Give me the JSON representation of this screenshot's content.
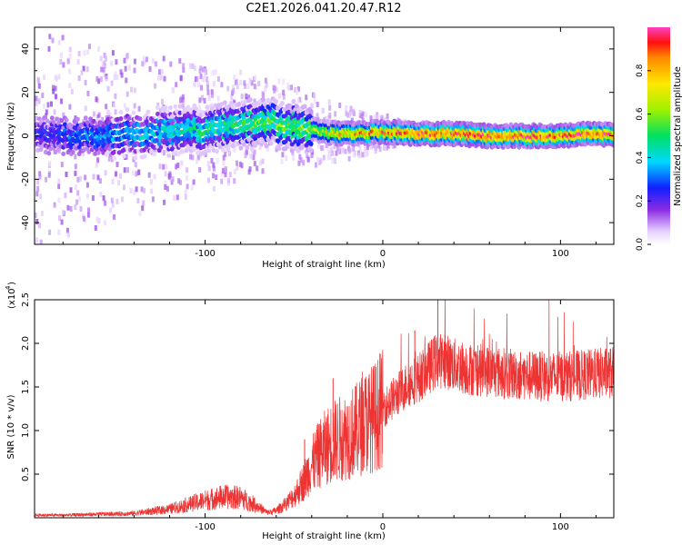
{
  "chart_data": [
    {
      "type": "heatmap",
      "title": "C2E1.2026.041.20.47.R12",
      "xlabel": "Height of straight line (km)",
      "ylabel": "Frequency (Hz)",
      "xlim": [
        -196,
        130
      ],
      "ylim": [
        -50,
        50
      ],
      "xticks": [
        -100,
        0,
        100
      ],
      "xtick_labels": [
        "-100",
        "0",
        "100"
      ],
      "yticks": [
        -40,
        -20,
        0,
        20,
        40
      ],
      "ytick_labels": [
        "-40",
        "-20",
        "0",
        "20",
        "40"
      ],
      "colorbar": {
        "label": "Normalized spectral amplitude",
        "range": [
          0,
          1
        ],
        "ticks": [
          0.0,
          0.2,
          0.4,
          0.6,
          0.8
        ],
        "tick_labels": [
          "0.0",
          "0.2",
          "0.4",
          "0.6",
          "0.8"
        ]
      },
      "ridge": {
        "x": [
          -196,
          -180,
          -160,
          -140,
          -120,
          -100,
          -80,
          -65,
          -55,
          -45,
          -35,
          -25,
          -10,
          0,
          20,
          40,
          60,
          80,
          100,
          120,
          130
        ],
        "freq": [
          0,
          0,
          0,
          1,
          2,
          3,
          5,
          6,
          5,
          4,
          2,
          1,
          1,
          2,
          1,
          1,
          0,
          0,
          0,
          1,
          0
        ],
        "peak": [
          0.25,
          0.3,
          0.35,
          0.4,
          0.45,
          0.5,
          0.55,
          0.6,
          0.6,
          0.62,
          0.7,
          0.8,
          0.85,
          0.9,
          0.95,
          0.97,
          0.98,
          0.98,
          0.98,
          0.97,
          0.95
        ]
      }
    },
    {
      "type": "line",
      "xlabel": "Height of straight line (km)",
      "ylabel": "SNR (10 * v/v)",
      "multiplier_label": "(x10",
      "multiplier_exp": "4",
      "multiplier_close": ")",
      "xlim": [
        -196,
        130
      ],
      "ylim": [
        0,
        25000
      ],
      "xticks": [
        -100,
        0,
        100
      ],
      "xtick_labels": [
        "-100",
        "0",
        "100"
      ],
      "yticks": [
        5000,
        10000,
        15000,
        20000,
        25000
      ],
      "ytick_labels": [
        "0.5",
        "1.0",
        "1.5",
        "2.0",
        "2.5"
      ],
      "color": "#ee3333",
      "series": [
        {
          "name": "SNR",
          "x": [
            -196,
            -180,
            -160,
            -140,
            -120,
            -110,
            -100,
            -90,
            -80,
            -72,
            -65,
            -60,
            -55,
            -50,
            -45,
            -40,
            -35,
            -30,
            -25,
            -20,
            -15,
            -10,
            -5,
            0,
            5,
            10,
            15,
            20,
            25,
            30,
            35,
            40,
            50,
            60,
            70,
            80,
            90,
            100,
            110,
            120,
            130
          ],
          "values": [
            300,
            300,
            400,
            500,
            1000,
            1500,
            2000,
            2400,
            2300,
            1500,
            600,
            800,
            1500,
            2500,
            4000,
            6000,
            7500,
            8500,
            9000,
            9500,
            10000,
            11000,
            11500,
            12500,
            13500,
            14500,
            15500,
            16000,
            17000,
            18000,
            18000,
            17500,
            17000,
            16800,
            16500,
            16300,
            16200,
            16200,
            16300,
            16500,
            16700
          ]
        }
      ],
      "spikes": [
        {
          "x": -28,
          "value": 16000
        },
        {
          "x": -44,
          "value": 9000
        },
        {
          "x": 31,
          "value": 25000
        },
        {
          "x": 18,
          "value": 21500
        },
        {
          "x": 35,
          "value": 21000
        }
      ]
    }
  ]
}
